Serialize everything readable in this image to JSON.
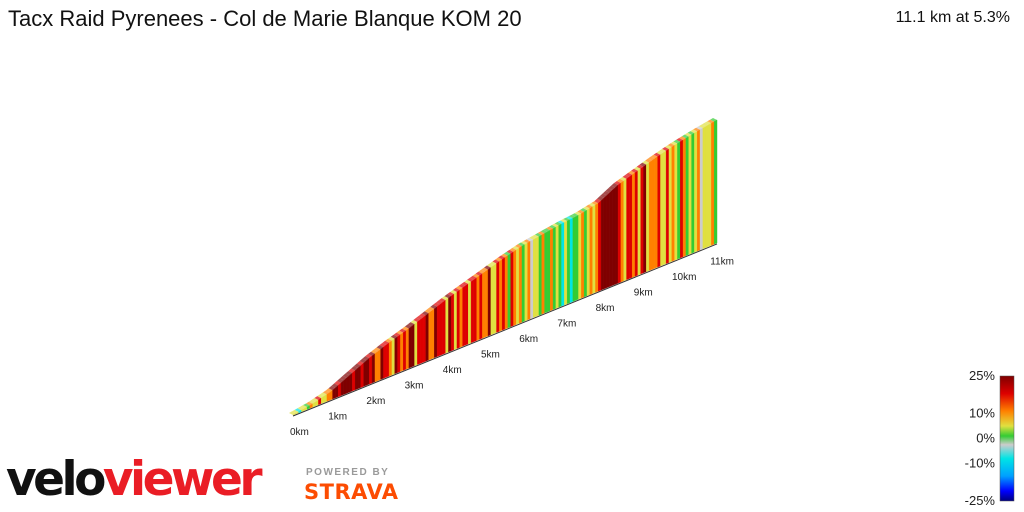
{
  "header": {
    "title": "Tacx Raid Pyrenees - Col de Marie Blanque KOM 20",
    "summary": "11.1 km at 5.3%"
  },
  "branding": {
    "logo_velo": "velo",
    "logo_viewer": "viewer",
    "powered_by": "POWERED BY",
    "strava": "STRAVA"
  },
  "colors": {
    "logo_red": "#ea1d25",
    "strava_orange": "#fc4c02",
    "gradient_scale": [
      "#00007f",
      "#0000ff",
      "#00a0ff",
      "#00e5e5",
      "#cccccc",
      "#33cc33",
      "#e0e040",
      "#ff8000",
      "#dd0000",
      "#7f0000"
    ]
  },
  "chart_data": {
    "type": "area",
    "subtype": "3d-gradient-elevation-profile",
    "xlabel_ticks": [
      "0km",
      "1km",
      "2km",
      "3km",
      "4km",
      "5km",
      "6km",
      "7km",
      "8km",
      "9km",
      "10km",
      "11km"
    ],
    "x_unit": "km",
    "x_range": [
      0,
      11.1
    ],
    "distance_km": [
      0,
      0.5,
      1,
      1.5,
      2,
      2.5,
      3,
      3.5,
      4,
      4.5,
      5,
      5.5,
      6,
      6.5,
      7,
      7.5,
      8,
      8.5,
      9,
      9.5,
      10,
      10.5,
      11.1
    ],
    "elevation_rel": [
      0,
      3,
      8,
      17,
      26,
      33,
      39,
      46,
      53,
      59,
      65,
      71,
      76,
      79,
      82,
      84,
      88,
      98,
      104,
      110,
      115,
      119,
      123
    ],
    "legend": {
      "title": "",
      "ticks": [
        "25%",
        "10%",
        "0%",
        "-10%",
        "-25%"
      ],
      "range_percent": [
        -25,
        25
      ]
    }
  }
}
